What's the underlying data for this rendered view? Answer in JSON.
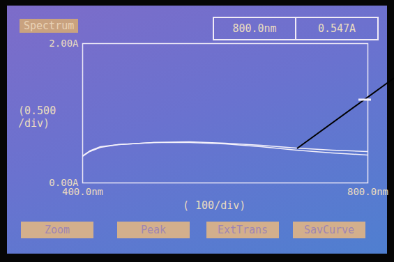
{
  "chart_data": {
    "type": "line",
    "title": "Spectrum",
    "x_label": "( 100/div)",
    "y_label": "(0.500 /div)",
    "x": [
      400,
      410,
      425,
      450,
      500,
      550,
      600,
      650,
      700,
      750,
      800
    ],
    "series": [
      {
        "color": "#f4f1fa",
        "values": [
          0.38,
          0.45,
          0.51,
          0.55,
          0.58,
          0.59,
          0.57,
          0.54,
          0.5,
          0.47,
          0.45
        ]
      },
      {
        "color": "#f4f1fa",
        "values": [
          0.39,
          0.46,
          0.52,
          0.55,
          0.58,
          0.58,
          0.56,
          0.52,
          0.47,
          0.43,
          0.4
        ]
      }
    ],
    "xlim": [
      400,
      800
    ],
    "ylim": [
      0,
      2
    ],
    "xticks": [
      {
        "value": 400,
        "label": "400.0nm"
      },
      {
        "value": 800,
        "label": "800.0nm"
      }
    ],
    "yticks": [
      {
        "value": 0,
        "label": "0.00A"
      },
      {
        "value": 2,
        "label": "2.00A"
      }
    ],
    "grid": false,
    "annotations": {
      "readout": [
        "800.0nm",
        "0.547A"
      ],
      "buttons": [
        "Zoom",
        "Peak",
        "ExtTrans",
        "SavCurve"
      ]
    }
  }
}
